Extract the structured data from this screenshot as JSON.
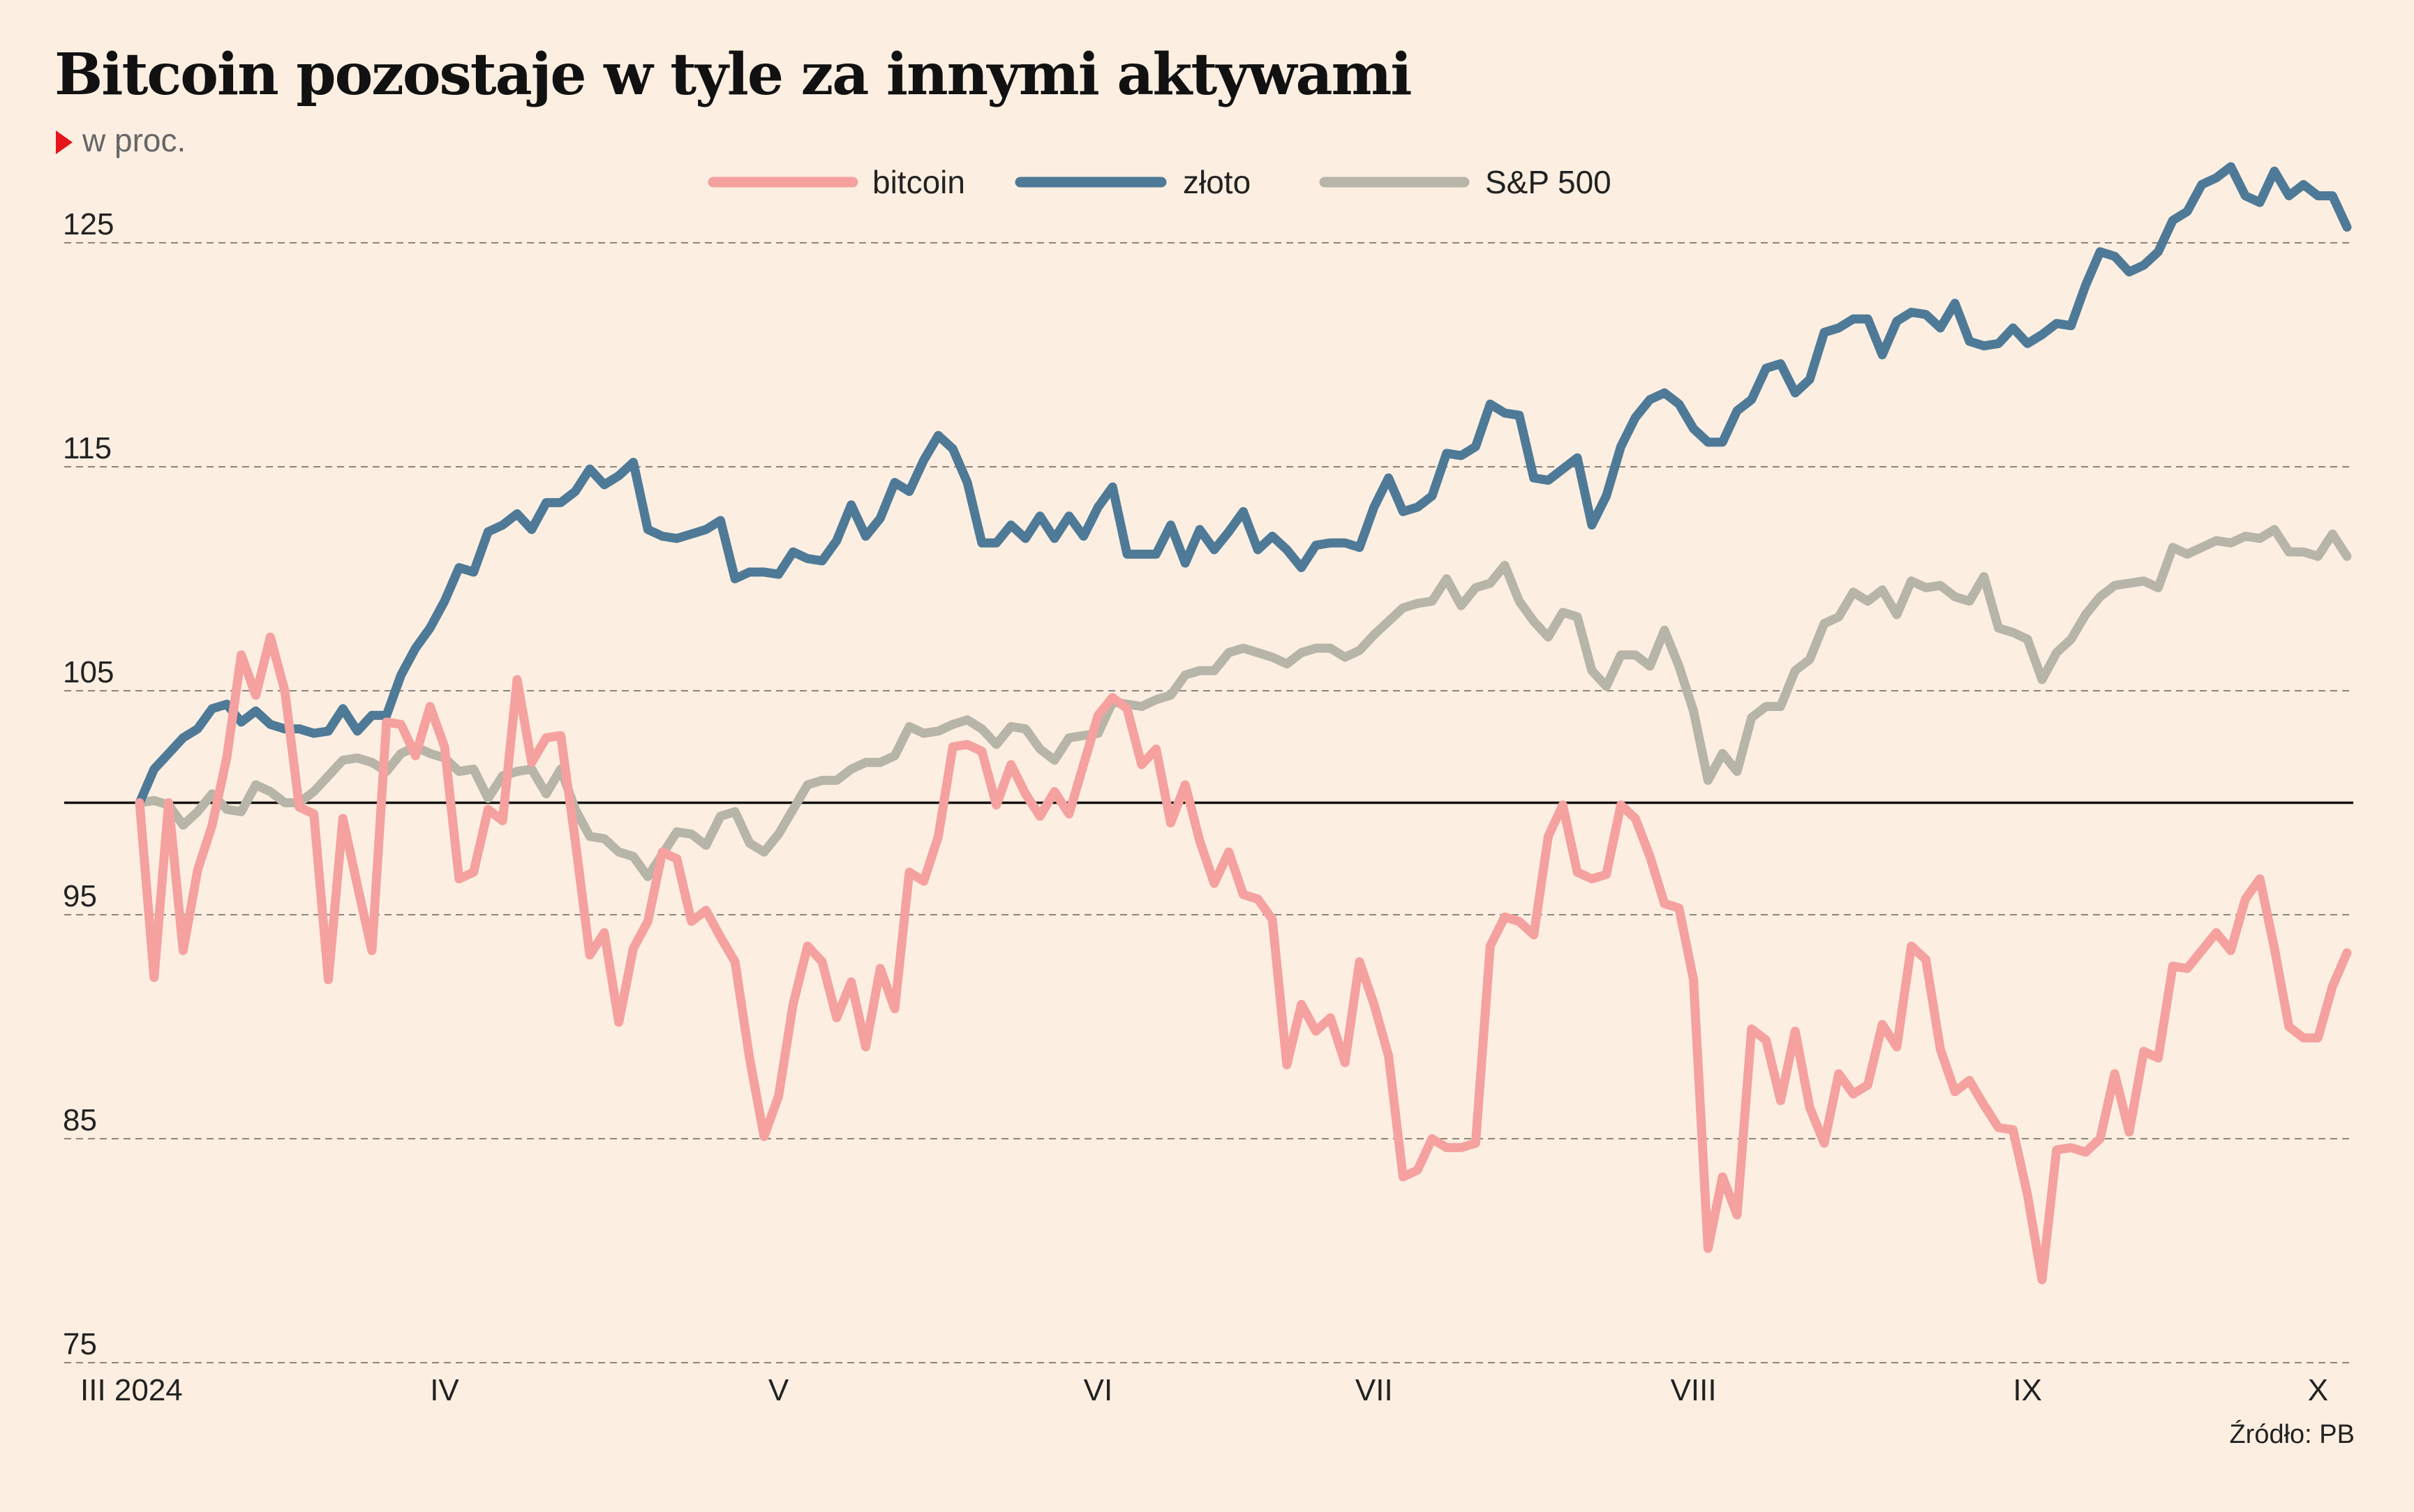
{
  "chart_data": {
    "type": "line",
    "title": "Bitcoin pozostaje w tyle za innymi aktywami",
    "subtitle": "w proc.",
    "source": "Źródło: PB",
    "xlabel": "",
    "ylabel": "",
    "ylim": [
      75,
      130
    ],
    "y_ticks": [
      125,
      115,
      105,
      95,
      85,
      75
    ],
    "baseline": 100,
    "grid": "horizontal-dashed",
    "legend_position": "top-center",
    "x_ticks": [
      {
        "label": "III 2024",
        "index": 0
      },
      {
        "label": "IV",
        "index": 21
      },
      {
        "label": "V",
        "index": 44
      },
      {
        "label": "VI",
        "index": 66
      },
      {
        "label": "VII",
        "index": 85
      },
      {
        "label": "VIII",
        "index": 107
      },
      {
        "label": "IX",
        "index": 130
      },
      {
        "label": "X",
        "index": 150
      }
    ],
    "series": [
      {
        "name": "bitcoin",
        "color": "#f5a19f",
        "values": [
          100.0,
          92.2,
          100.0,
          93.4,
          97.0,
          99.0,
          102.0,
          106.6,
          104.8,
          107.4,
          105.0,
          99.8,
          99.5,
          92.1,
          99.3,
          96.3,
          93.4,
          103.6,
          103.5,
          102.1,
          104.3,
          102.5,
          96.6,
          96.9,
          99.7,
          99.2,
          105.5,
          101.8,
          102.9,
          103.0,
          98.3,
          93.2,
          94.2,
          90.2,
          93.5,
          94.7,
          97.8,
          97.5,
          94.7,
          95.2,
          94.0,
          92.9,
          88.6,
          85.1,
          86.9,
          91.0,
          93.6,
          92.9,
          90.4,
          92.0,
          89.1,
          92.6,
          90.8,
          96.9,
          96.5,
          98.5,
          102.5,
          102.6,
          102.3,
          99.9,
          101.7,
          100.4,
          99.4,
          100.5,
          99.5,
          101.7,
          103.9,
          104.7,
          104.2,
          101.7,
          102.4,
          99.1,
          100.8,
          98.3,
          96.4,
          97.8,
          95.9,
          95.7,
          94.8,
          88.3,
          91.0,
          89.8,
          90.4,
          88.4,
          92.9,
          91.0,
          88.7,
          83.3,
          83.6,
          85.0,
          84.6,
          84.6,
          84.8,
          93.6,
          94.9,
          94.7,
          94.1,
          98.5,
          99.9,
          96.9,
          96.6,
          96.8,
          99.9,
          99.3,
          97.6,
          95.5,
          95.3,
          92.1,
          80.1,
          83.3,
          81.6,
          89.9,
          89.4,
          86.7,
          89.8,
          86.4,
          84.8,
          87.9,
          87.0,
          87.4,
          90.1,
          89.1,
          93.6,
          93.0,
          89.0,
          87.1,
          87.6,
          86.5,
          85.5,
          85.4,
          82.5,
          78.7,
          84.5,
          84.6,
          84.4,
          85.0,
          87.9,
          85.3,
          88.9,
          88.6,
          92.7,
          92.6,
          93.4,
          94.2,
          93.4,
          95.7,
          96.6,
          93.5,
          90.0,
          89.5,
          89.5,
          91.8,
          93.3
        ]
      },
      {
        "name": "złoto",
        "color": "#4e7a97",
        "values": [
          100.0,
          101.5,
          102.2,
          102.9,
          103.3,
          104.2,
          104.4,
          103.6,
          104.1,
          103.5,
          103.3,
          103.3,
          103.1,
          103.2,
          104.2,
          103.2,
          103.9,
          103.9,
          105.7,
          106.9,
          107.8,
          109.0,
          110.5,
          110.3,
          112.1,
          112.4,
          112.9,
          112.2,
          113.4,
          113.4,
          113.9,
          114.9,
          114.2,
          114.6,
          115.2,
          112.2,
          111.9,
          111.8,
          112.0,
          112.2,
          112.6,
          110.0,
          110.3,
          110.3,
          110.2,
          111.2,
          110.9,
          110.8,
          111.7,
          113.3,
          111.9,
          112.7,
          114.3,
          113.9,
          115.3,
          116.4,
          115.8,
          114.3,
          111.6,
          111.6,
          112.4,
          111.8,
          112.8,
          111.8,
          112.8,
          111.9,
          113.2,
          114.1,
          111.1,
          111.1,
          111.1,
          112.4,
          110.7,
          112.2,
          111.3,
          112.1,
          113.0,
          111.3,
          111.9,
          111.3,
          110.5,
          111.5,
          111.6,
          111.6,
          111.4,
          113.2,
          114.5,
          113.0,
          113.2,
          113.7,
          115.6,
          115.5,
          115.9,
          117.8,
          117.4,
          117.3,
          114.5,
          114.4,
          114.9,
          115.4,
          112.4,
          113.7,
          115.9,
          117.2,
          118.0,
          118.3,
          117.8,
          116.7,
          116.1,
          116.1,
          117.5,
          118.0,
          119.4,
          119.6,
          118.3,
          118.9,
          121.0,
          121.2,
          121.6,
          121.6,
          120.0,
          121.5,
          121.9,
          121.8,
          121.2,
          122.3,
          120.6,
          120.4,
          120.5,
          121.2,
          120.5,
          120.9,
          121.4,
          121.3,
          123.1,
          124.6,
          124.4,
          123.7,
          124.0,
          124.6,
          126.0,
          126.4,
          127.6,
          127.9,
          128.4,
          127.1,
          126.8,
          128.2,
          127.1,
          127.6,
          127.1,
          127.1,
          125.7
        ]
      },
      {
        "name": "S&P 500",
        "color": "#b7b4a8",
        "values": [
          100.0,
          100.1,
          99.9,
          99.0,
          99.6,
          100.4,
          99.7,
          99.6,
          100.8,
          100.5,
          100.0,
          100.0,
          100.5,
          101.2,
          101.9,
          102.0,
          101.8,
          101.4,
          102.2,
          102.5,
          102.2,
          102.0,
          101.4,
          101.5,
          100.2,
          101.2,
          101.4,
          101.5,
          100.4,
          101.5,
          99.7,
          98.5,
          98.4,
          97.8,
          97.6,
          96.7,
          97.7,
          98.7,
          98.6,
          98.1,
          99.4,
          99.6,
          98.2,
          97.8,
          98.6,
          99.7,
          100.8,
          101.0,
          101.0,
          101.5,
          101.8,
          101.8,
          102.1,
          103.4,
          103.1,
          103.2,
          103.5,
          103.7,
          103.3,
          102.6,
          103.4,
          103.3,
          102.4,
          101.9,
          102.9,
          103.0,
          103.1,
          104.5,
          104.4,
          104.3,
          104.6,
          104.8,
          105.7,
          105.9,
          105.9,
          106.7,
          106.9,
          106.7,
          106.5,
          106.2,
          106.7,
          106.9,
          106.9,
          106.5,
          106.8,
          107.5,
          108.1,
          108.7,
          108.9,
          109.0,
          110.0,
          108.8,
          109.6,
          109.8,
          110.6,
          109.0,
          108.1,
          107.4,
          108.5,
          108.3,
          105.9,
          105.2,
          106.6,
          106.6,
          106.1,
          107.7,
          106.1,
          104.1,
          101.0,
          102.2,
          101.4,
          103.8,
          104.3,
          104.3,
          105.9,
          106.4,
          108.0,
          108.3,
          109.4,
          109.0,
          109.5,
          108.4,
          109.9,
          109.6,
          109.7,
          109.2,
          109.0,
          110.1,
          107.8,
          107.6,
          107.3,
          105.5,
          106.7,
          107.3,
          108.4,
          109.2,
          109.7,
          109.8,
          109.9,
          109.6,
          111.4,
          111.1,
          111.4,
          111.7,
          111.6,
          111.9,
          111.8,
          112.2,
          111.2,
          111.2,
          111.0,
          112.0,
          111.0
        ]
      }
    ]
  }
}
